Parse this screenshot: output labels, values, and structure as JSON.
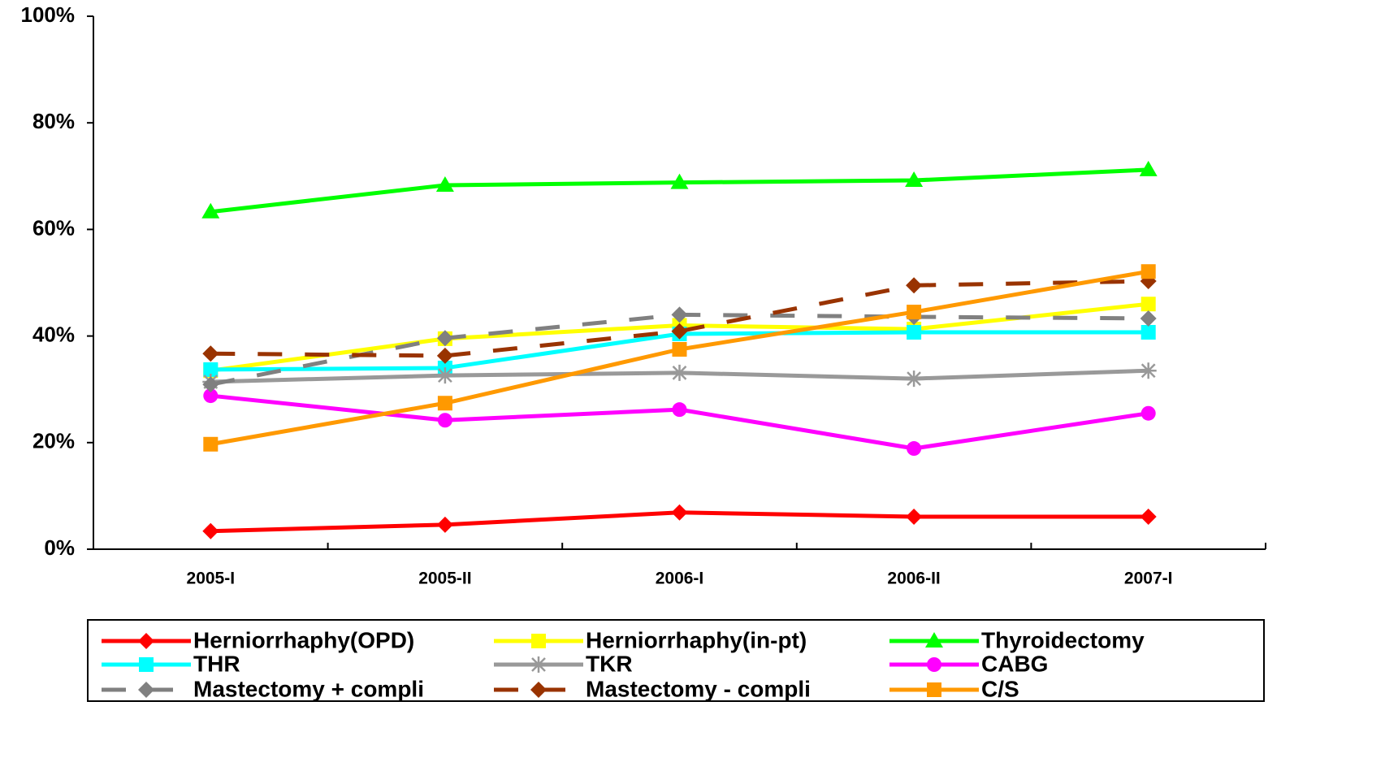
{
  "chart_data": {
    "type": "line",
    "categories": [
      "2005-I",
      "2005-II",
      "2006-I",
      "2006-II",
      "2007-I"
    ],
    "ylim": [
      0,
      100
    ],
    "yticks": [
      {
        "value": 0,
        "label": "0%"
      },
      {
        "value": 20,
        "label": "20%"
      },
      {
        "value": 40,
        "label": "40%"
      },
      {
        "value": 60,
        "label": "60%"
      },
      {
        "value": 80,
        "label": "80%"
      },
      {
        "value": 100,
        "label": "100%"
      }
    ],
    "grid": false,
    "legend": "bottom",
    "series": [
      {
        "name": "Herniorrhaphy(OPD)",
        "color": "#ff0000",
        "marker": "diamond",
        "dashed": false,
        "values": [
          3.4,
          4.6,
          6.9,
          6.1,
          6.1
        ]
      },
      {
        "name": "Herniorrhaphy(in-pt)",
        "color": "#ffff00",
        "marker": "square",
        "dashed": false,
        "values": [
          33.5,
          39.5,
          42,
          41.3,
          46
        ]
      },
      {
        "name": "Thyroidectomy",
        "color": "#00ff00",
        "marker": "triangle",
        "dashed": false,
        "values": [
          63.3,
          68.3,
          68.8,
          69.2,
          71.2
        ]
      },
      {
        "name": "THR",
        "color": "#00ffff",
        "marker": "square",
        "dashed": false,
        "values": [
          33.7,
          34,
          40.4,
          40.7,
          40.7
        ]
      },
      {
        "name": "TKR",
        "color": "#999999",
        "marker": "asterisk",
        "dashed": false,
        "values": [
          31.4,
          32.6,
          33.1,
          32,
          33.5
        ]
      },
      {
        "name": "CABG",
        "color": "#ff00ff",
        "marker": "circle",
        "dashed": false,
        "values": [
          28.8,
          24.2,
          26.2,
          18.9,
          25.5
        ]
      },
      {
        "name": "Mastectomy + compli",
        "color": "#808080",
        "marker": "diamond",
        "dashed": true,
        "values": [
          30.9,
          39.6,
          44,
          43.6,
          43.3
        ]
      },
      {
        "name": "Mastectomy - compli",
        "color": "#993300",
        "marker": "diamond",
        "dashed": true,
        "values": [
          36.7,
          36.3,
          40.9,
          49.5,
          50.3
        ]
      },
      {
        "name": "C/S",
        "color": "#ff9900",
        "marker": "square",
        "dashed": false,
        "values": [
          19.7,
          27.4,
          37.5,
          44.5,
          52.1
        ]
      }
    ]
  }
}
